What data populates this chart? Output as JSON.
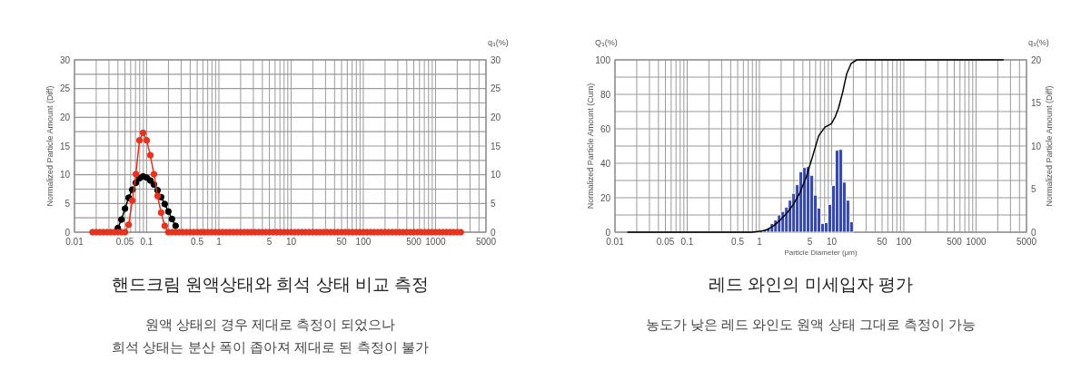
{
  "chart_data": [
    {
      "type": "line",
      "title": "핸드크림 원액상태와 희석 상태 비교 측정",
      "subtitle": "원액 상태의 경우 제대로 측정이 되었으나\n희석 상태는 분산 폭이 좁아져 제대로 된 측정이 불가",
      "ylabel": "Normalized Particle Amount (Diff)",
      "annotations": [
        "q₃(%)"
      ],
      "log": "x",
      "grid": true,
      "xlim": [
        0.01,
        5000
      ],
      "xticks": [
        0.01,
        {
          "value": 0.02,
          "label": null
        },
        {
          "value": 0.03,
          "label": null
        },
        {
          "value": 0.04,
          "label": null
        },
        0.05,
        {
          "value": 0.06,
          "label": null
        },
        {
          "value": 0.07,
          "label": null
        },
        {
          "value": 0.08,
          "label": null
        },
        {
          "value": 0.09,
          "label": null
        },
        0.1,
        {
          "value": 0.2,
          "label": null
        },
        {
          "value": 0.3,
          "label": null
        },
        {
          "value": 0.4,
          "label": null
        },
        0.5,
        {
          "value": 0.6,
          "label": null
        },
        {
          "value": 0.7,
          "label": null
        },
        {
          "value": 0.8,
          "label": null
        },
        {
          "value": 0.9,
          "label": null
        },
        1,
        {
          "value": 2,
          "label": null
        },
        {
          "value": 3,
          "label": null
        },
        {
          "value": 4,
          "label": null
        },
        5,
        {
          "value": 6,
          "label": null
        },
        {
          "value": 7,
          "label": null
        },
        {
          "value": 8,
          "label": null
        },
        {
          "value": 9,
          "label": null
        },
        10,
        {
          "value": 20,
          "label": null
        },
        {
          "value": 30,
          "label": null
        },
        {
          "value": 40,
          "label": null
        },
        50,
        {
          "value": 60,
          "label": null
        },
        {
          "value": 70,
          "label": null
        },
        {
          "value": 80,
          "label": null
        },
        {
          "value": 90,
          "label": null
        },
        100,
        {
          "value": 200,
          "label": null
        },
        {
          "value": 300,
          "label": null
        },
        {
          "value": 400,
          "label": null
        },
        500,
        {
          "value": 600,
          "label": null
        },
        {
          "value": 700,
          "label": null
        },
        {
          "value": 800,
          "label": null
        },
        {
          "value": 900,
          "label": null
        },
        1000,
        {
          "value": 2000,
          "label": null
        },
        {
          "value": 3000,
          "label": null
        },
        {
          "value": 4000,
          "label": null
        },
        5000
      ],
      "ylim": [
        0,
        30
      ],
      "yticks": [
        0,
        {
          "value": 2.5,
          "label": null
        },
        5,
        {
          "value": 7.5,
          "label": null
        },
        10,
        {
          "value": 12.5,
          "label": null
        },
        15,
        {
          "value": 17.5,
          "label": null
        },
        20,
        {
          "value": 22.5,
          "label": null
        },
        25,
        {
          "value": 27.5,
          "label": null
        },
        30
      ],
      "y2lim": [
        0,
        30
      ],
      "y2ticks": [
        0,
        5,
        10,
        15,
        20,
        25,
        30
      ],
      "series": [
        {
          "color": "#000000",
          "marker": "circle",
          "x": [
            0.03981,
            0.04467,
            0.05012,
            0.05623,
            0.0631,
            0.07079,
            0.07943,
            0.08913,
            0.1,
            0.1122,
            0.1259,
            0.1413,
            0.1585,
            0.1778,
            0.1995,
            0.2239,
            0.2512
          ],
          "values": [
            0.7,
            2.2,
            4.1,
            6.0,
            7.4,
            8.6,
            9.4,
            9.7,
            9.5,
            9.0,
            8.3,
            7.3,
            6.1,
            4.9,
            3.6,
            2.3,
            1.1
          ]
        },
        {
          "color": "#e8321e",
          "marker": "circle",
          "x": [
            0.01778,
            0.01995,
            0.02239,
            0.02512,
            0.02818,
            0.03162,
            0.03548,
            0.03981,
            0.04467,
            0.05012,
            0.05623,
            0.0631,
            0.07079,
            0.07943,
            0.08913,
            0.1,
            0.1122,
            0.1259,
            0.1413,
            0.1585,
            0.1778,
            0.1995,
            0.2239,
            0.2512,
            0.2818,
            0.3162,
            0.3548,
            0.3981,
            0.4467,
            0.5012,
            0.5623,
            0.631,
            0.7079,
            0.7943,
            0.8913,
            1,
            1.122,
            1.259,
            1.413,
            1.585,
            1.778,
            1.995,
            2.239,
            2.512,
            2.818,
            3.162,
            3.548,
            3.981,
            4.467,
            5.012,
            5.623,
            6.31,
            7.079,
            7.943,
            8.913,
            10,
            11.22,
            12.59,
            14.13,
            15.85,
            17.78,
            19.95,
            22.39,
            25.12,
            28.18,
            31.62,
            35.48,
            39.81,
            44.67,
            50.12,
            56.23,
            63.1,
            70.79,
            79.43,
            89.13,
            100,
            112.2,
            125.9,
            141.3,
            158.5,
            177.8,
            199.5,
            223.9,
            251.2,
            281.8,
            316.2,
            354.8,
            398.1,
            446.7,
            501.2,
            562.3,
            631,
            707.9,
            794.3,
            891.3,
            1000,
            1122,
            1259,
            1413,
            1585,
            1778,
            1995,
            2239
          ],
          "values": [
            0,
            0,
            0,
            0,
            0,
            0,
            0,
            0,
            0,
            0,
            1.3,
            5.5,
            10.1,
            16,
            17.3,
            16,
            13.4,
            10.1,
            6.3,
            3.4,
            1.1,
            0,
            0,
            0,
            0,
            0,
            0,
            0,
            0,
            0,
            0,
            0,
            0,
            0,
            0,
            0,
            0,
            0,
            0,
            0,
            0,
            0,
            0,
            0,
            0,
            0,
            0,
            0,
            0,
            0,
            0,
            0,
            0,
            0,
            0,
            0,
            0,
            0,
            0,
            0,
            0,
            0,
            0,
            0,
            0,
            0,
            0,
            0,
            0,
            0,
            0,
            0,
            0,
            0,
            0,
            0,
            0,
            0,
            0,
            0,
            0,
            0,
            0,
            0,
            0,
            0,
            0,
            0,
            0,
            0,
            0,
            0,
            0,
            0,
            0,
            0,
            0,
            0,
            0,
            0,
            0,
            0,
            0
          ]
        }
      ]
    },
    {
      "type": "histogram",
      "title": "레드 와인의 미세입자 평가",
      "subtitle": "농도가 낮은 레드 와인도 원액 상태 그대로 측정이 가능",
      "xlabel": "Particle Diameter (μm)",
      "ylabel": "Normalized Particle Amount (Cum)",
      "y2label": "Normalized Particle Amount (Diff)",
      "annotations": [
        "Q₃(%)",
        "q₃(%)"
      ],
      "log": "x",
      "grid": true,
      "xlim": [
        0.01,
        5000
      ],
      "xticks": [
        0.01,
        {
          "value": 0.02,
          "label": null
        },
        {
          "value": 0.03,
          "label": null
        },
        {
          "value": 0.04,
          "label": null
        },
        0.05,
        {
          "value": 0.06,
          "label": null
        },
        {
          "value": 0.07,
          "label": null
        },
        {
          "value": 0.08,
          "label": null
        },
        {
          "value": 0.09,
          "label": null
        },
        0.1,
        {
          "value": 0.2,
          "label": null
        },
        {
          "value": 0.3,
          "label": null
        },
        {
          "value": 0.4,
          "label": null
        },
        0.5,
        {
          "value": 0.6,
          "label": null
        },
        {
          "value": 0.7,
          "label": null
        },
        {
          "value": 0.8,
          "label": null
        },
        {
          "value": 0.9,
          "label": null
        },
        1,
        {
          "value": 2,
          "label": null
        },
        {
          "value": 3,
          "label": null
        },
        {
          "value": 4,
          "label": null
        },
        5,
        {
          "value": 6,
          "label": null
        },
        {
          "value": 7,
          "label": null
        },
        {
          "value": 8,
          "label": null
        },
        {
          "value": 9,
          "label": null
        },
        10,
        {
          "value": 20,
          "label": null
        },
        {
          "value": 30,
          "label": null
        },
        {
          "value": 40,
          "label": null
        },
        50,
        {
          "value": 60,
          "label": null
        },
        {
          "value": 70,
          "label": null
        },
        {
          "value": 80,
          "label": null
        },
        {
          "value": 90,
          "label": null
        },
        100,
        {
          "value": 200,
          "label": null
        },
        {
          "value": 300,
          "label": null
        },
        {
          "value": 400,
          "label": null
        },
        500,
        {
          "value": 600,
          "label": null
        },
        {
          "value": 700,
          "label": null
        },
        {
          "value": 800,
          "label": null
        },
        {
          "value": 900,
          "label": null
        },
        1000,
        {
          "value": 2000,
          "label": null
        },
        {
          "value": 3000,
          "label": null
        },
        {
          "value": 4000,
          "label": null
        },
        5000
      ],
      "ylim": [
        0,
        100
      ],
      "yticks": [
        0,
        {
          "value": 10,
          "label": null
        },
        20,
        {
          "value": 30,
          "label": null
        },
        40,
        {
          "value": 50,
          "label": null
        },
        60,
        {
          "value": 70,
          "label": null
        },
        80,
        {
          "value": 90,
          "label": null
        },
        100
      ],
      "y2lim": [
        0,
        20
      ],
      "y2ticks": [
        0,
        5,
        10,
        15,
        20
      ],
      "series": [
        {
          "axis": "y2",
          "color": "#3a4aa0",
          "bins": [
            0.8913,
            1,
            1.122,
            1.259,
            1.413,
            1.585,
            1.778,
            1.995,
            2.239,
            2.512,
            2.818,
            3.162,
            3.548,
            3.981,
            4.467,
            5.012,
            5.623,
            6.31,
            7.079,
            7.943,
            8.913,
            10,
            11.22,
            12.59,
            14.13,
            15.85,
            17.78,
            19.95
          ],
          "values": [
            0.1,
            0.2,
            0.3,
            0.5,
            1.0,
            1.4,
            2.0,
            2.4,
            2.9,
            3.7,
            4.5,
            5.5,
            7.0,
            7.5,
            7.6,
            6.6,
            4.3,
            2.8,
            1.0,
            1.1,
            3.2,
            5.4,
            9.5,
            9.6,
            5.8,
            3.7,
            1.2
          ]
        },
        {
          "type": "line",
          "color": "#000000",
          "x": [
            0.01485,
            0.783,
            1.062,
            1.303,
            1.596,
            1.955,
            2.399,
            2.938,
            3.597,
            4.415,
            5.408,
            6.627,
            8.11,
            9.95,
            11.24,
            12.45,
            14.2,
            16.2,
            18.7,
            22.4,
            2410
          ],
          "values": [
            0,
            0,
            0.6,
            1.6,
            3.9,
            7.2,
            11,
            16,
            22.4,
            31.6,
            43.5,
            56,
            61,
            63,
            67,
            72,
            81,
            92,
            98,
            100,
            100
          ]
        }
      ]
    }
  ]
}
